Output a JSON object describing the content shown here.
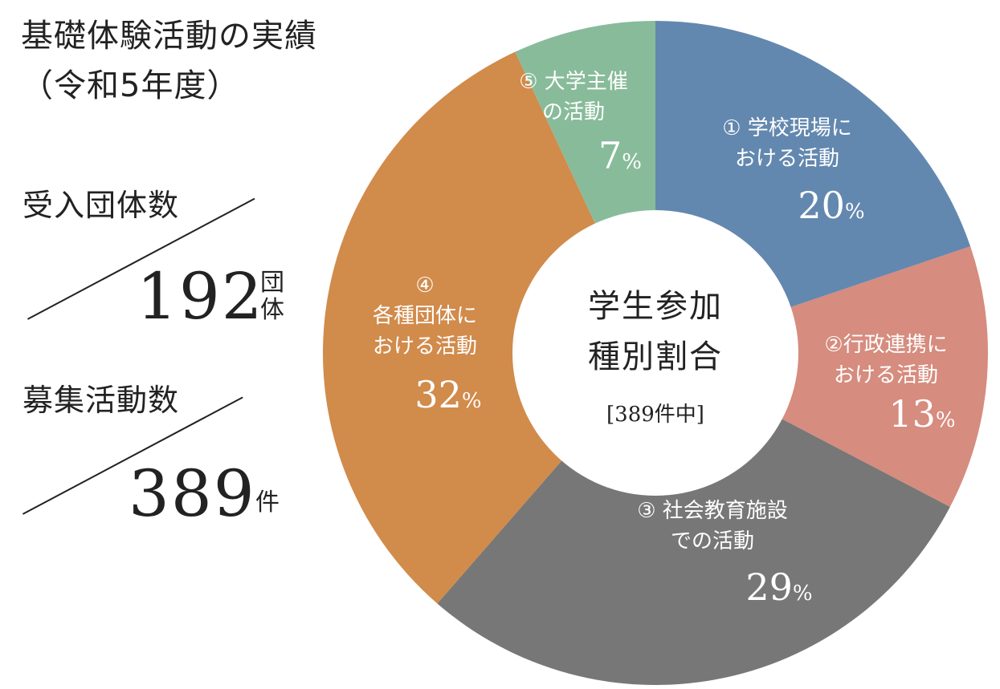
{
  "title": {
    "line1": "基礎体験活動の実績",
    "line2": "（令和5年度）"
  },
  "stats": [
    {
      "label": "受入団体数",
      "value": "192",
      "unit": "団体"
    },
    {
      "label": "募集活動数",
      "value": "389",
      "unit": "件"
    }
  ],
  "chart_data": {
    "type": "pie",
    "title": "学生参加種別割合",
    "center_lines": [
      "学生参加",
      "種別割合"
    ],
    "center_sub": "[389件中]",
    "slices": [
      {
        "label_lines": [
          "① 学校現場に",
          "おける活動"
        ],
        "value": 20,
        "color": "#6388af"
      },
      {
        "label_lines": [
          "②行政連携に",
          "おける活動"
        ],
        "value": 13,
        "color": "#d68c7e"
      },
      {
        "label_lines": [
          "③ 社会教育施設",
          "での活動"
        ],
        "value": 29,
        "color": "#777777"
      },
      {
        "label_lines": [
          "④",
          "各種団体に",
          "おける活動"
        ],
        "value": 32,
        "color": "#d18b4b"
      },
      {
        "label_lines": [
          "⑤ 大学主催",
          "の活動"
        ],
        "value": 7,
        "color": "#88bb9a"
      }
    ],
    "percent_sign": "%"
  }
}
